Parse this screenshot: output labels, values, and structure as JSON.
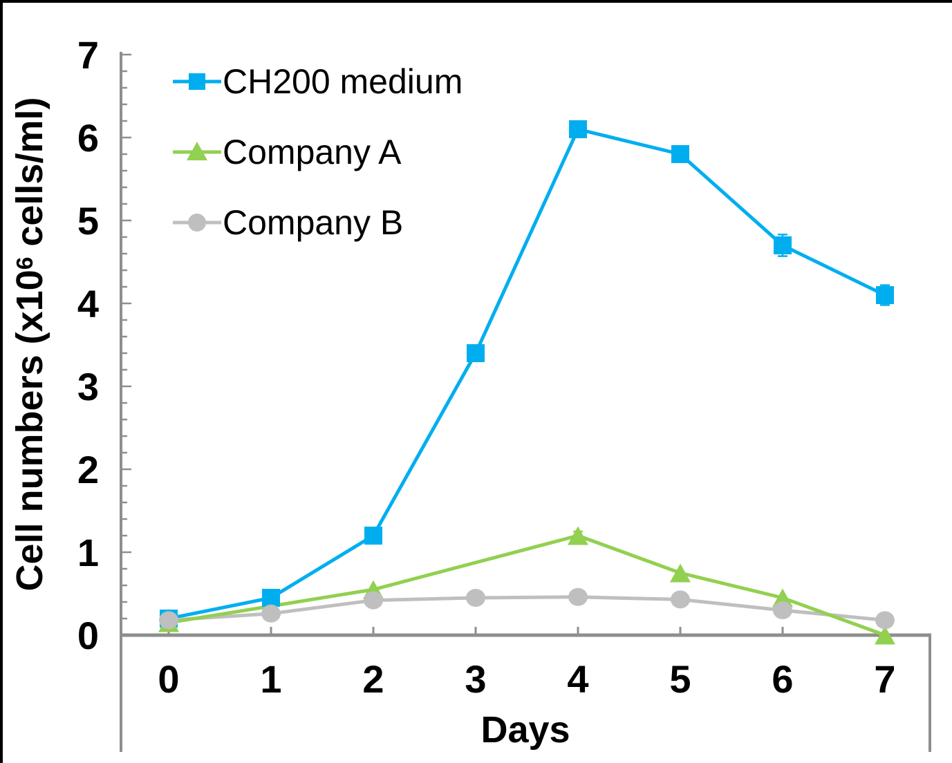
{
  "chart_data": {
    "type": "line",
    "title": "",
    "xlabel": "Days",
    "ylabel": "Cell numbers (x10⁶ cells/ml)",
    "x": [
      0,
      1,
      2,
      3,
      4,
      5,
      6,
      7
    ],
    "y_ticks": [
      0,
      1,
      2,
      3,
      4,
      5,
      6,
      7
    ],
    "ylim": [
      0,
      7
    ],
    "y_minor_tick": 0.2,
    "grid": "off",
    "legend_position": "top-left-inside",
    "series": [
      {
        "name": "CH200 medium",
        "color": "#00AEEF",
        "marker": "square",
        "values": [
          0.2,
          0.45,
          1.2,
          3.4,
          6.1,
          5.8,
          4.7,
          4.1
        ],
        "error_bars": [
          {
            "x": 6,
            "e": 0.13
          },
          {
            "x": 7,
            "e": 0.12
          }
        ]
      },
      {
        "name": "Company A",
        "color": "#92D050",
        "marker": "triangle",
        "values": [
          0.15,
          null,
          0.55,
          null,
          1.2,
          0.75,
          0.45,
          0
        ],
        "error_bars": [
          {
            "x": 4,
            "e": 0.05
          }
        ]
      },
      {
        "name": "Company B",
        "color": "#BFBFBF",
        "marker": "circle",
        "values": [
          0.18,
          0.26,
          0.42,
          0.45,
          0.46,
          0.43,
          0.3,
          0.18
        ],
        "error_bars": []
      }
    ]
  },
  "axes": {
    "x_title": "Days",
    "y_title_prefix": "Cell numbers (x10",
    "y_title_sup": "6",
    "y_title_suffix": " cells/ml)"
  },
  "colors": {
    "axis": "#8E8E8E",
    "frame": "#000000",
    "background": "#FFFFFF",
    "text": "#000000"
  }
}
